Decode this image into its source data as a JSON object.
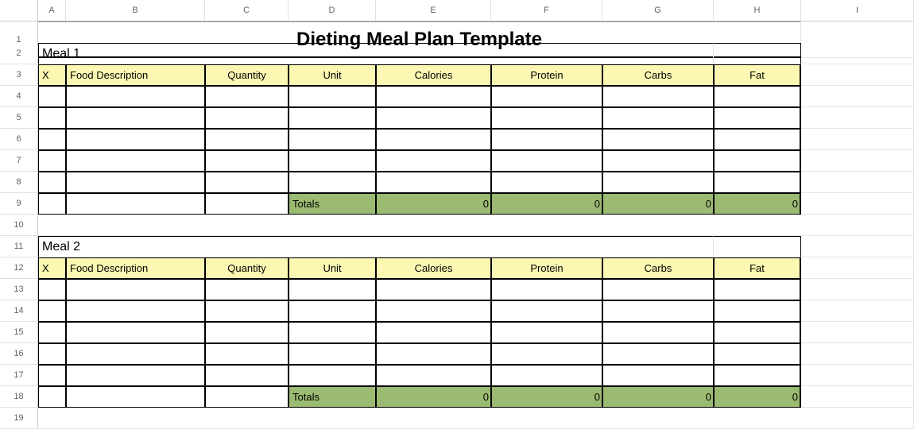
{
  "columns": [
    "A",
    "B",
    "C",
    "D",
    "E",
    "F",
    "G",
    "H",
    "I"
  ],
  "rows": [
    "1",
    "2",
    "3",
    "4",
    "5",
    "6",
    "7",
    "8",
    "9",
    "10",
    "11",
    "12",
    "13",
    "14",
    "15",
    "16",
    "17",
    "18",
    "19"
  ],
  "title": "Dieting Meal Plan Template",
  "headers": {
    "x": "X",
    "food": "Food Description",
    "qty": "Quantity",
    "unit": "Unit",
    "cal": "Calories",
    "prot": "Protein",
    "carb": "Carbs",
    "fat": "Fat"
  },
  "meal1": {
    "label": "Meal 1",
    "totals_label": "Totals",
    "totals": {
      "cal": "0",
      "prot": "0",
      "carb": "0",
      "fat": "0"
    }
  },
  "meal2": {
    "label": "Meal 2",
    "totals_label": "Totals",
    "totals": {
      "cal": "0",
      "prot": "0",
      "carb": "0",
      "fat": "0"
    }
  },
  "colors": {
    "header_bg": "#fcf8b3",
    "totals_bg": "#9bbb72",
    "gridline": "#e5e5e5",
    "table_border": "#000000"
  }
}
